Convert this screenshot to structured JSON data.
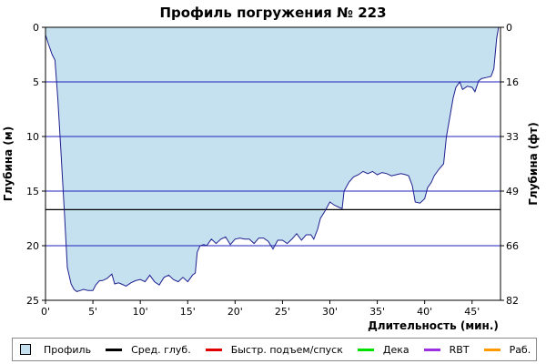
{
  "colors": {
    "fill": "#c5e1f0",
    "profile_stroke": "#1f1f8f",
    "grid": "#2020c0",
    "avg_depth": "#000000",
    "fast_ascent": "#e00000",
    "deco": "#00e000",
    "rbt": "#9b30e0",
    "work": "#ff9900"
  },
  "chart_data": {
    "type": "area",
    "title": "Профиль погружения № 223",
    "xlabel": "Длительность (мин.)",
    "ylabel_left": "Глубина (м)",
    "ylabel_right": "Глубина (фт)",
    "xlim": [
      0,
      48
    ],
    "ylim": [
      25,
      0
    ],
    "x_tick_labels": [
      "0'",
      "5'",
      "10'",
      "15'",
      "20'",
      "25'",
      "30'",
      "35'",
      "40'",
      "45'"
    ],
    "x_tick_values": [
      0,
      5,
      10,
      15,
      20,
      25,
      30,
      35,
      40,
      45
    ],
    "y_left_tick_labels": [
      "0",
      "5",
      "10",
      "15",
      "20",
      "25"
    ],
    "y_left_tick_values": [
      0,
      5,
      10,
      15,
      20,
      25
    ],
    "y_right_tick_labels": [
      "0",
      "16",
      "33",
      "49",
      "66",
      "82"
    ],
    "grid": "horizontal",
    "avg_depth": 16.7,
    "series": [
      {
        "name": "Профиль",
        "x": [
          0,
          0.3,
          0.7,
          1.0,
          1.3,
          1.6,
          2.0,
          2.3,
          2.7,
          3.0,
          3.3,
          3.7,
          4.0,
          4.5,
          5.0,
          5.3,
          5.7,
          6.0,
          6.5,
          7.0,
          7.3,
          7.7,
          8.0,
          8.5,
          9.0,
          9.5,
          10.0,
          10.5,
          11.0,
          11.5,
          12.0,
          12.5,
          13.0,
          13.5,
          14.0,
          14.5,
          15.0,
          15.5,
          15.8,
          16.0,
          16.3,
          16.7,
          17.0,
          17.5,
          18.0,
          18.5,
          19.0,
          19.5,
          20.0,
          20.5,
          21.0,
          21.5,
          22.0,
          22.5,
          23.0,
          23.5,
          24.0,
          24.5,
          25.0,
          25.5,
          26.0,
          26.5,
          27.0,
          27.5,
          28.0,
          28.3,
          28.7,
          29.0,
          29.5,
          30.0,
          30.5,
          31.0,
          31.3,
          31.5,
          32.0,
          32.5,
          33.0,
          33.5,
          34.0,
          34.5,
          35.0,
          35.5,
          36.0,
          36.5,
          37.0,
          37.5,
          38.0,
          38.3,
          38.7,
          39.0,
          39.5,
          40.0,
          40.3,
          40.7,
          41.0,
          41.5,
          42.0,
          42.3,
          42.7,
          43.0,
          43.3,
          43.7,
          44.0,
          44.5,
          45.0,
          45.3,
          45.7,
          46.0,
          46.5,
          47.0,
          47.3,
          47.6,
          47.8
        ],
        "y": [
          0.7,
          1.5,
          2.5,
          3.0,
          6.5,
          11.0,
          17.0,
          22.0,
          23.5,
          24.0,
          24.2,
          24.1,
          24.0,
          24.1,
          24.1,
          23.6,
          23.2,
          23.2,
          23.0,
          22.6,
          23.5,
          23.4,
          23.5,
          23.7,
          23.4,
          23.2,
          23.1,
          23.3,
          22.7,
          23.3,
          23.6,
          22.9,
          22.7,
          23.1,
          23.3,
          22.9,
          23.3,
          22.7,
          22.5,
          20.6,
          20.0,
          19.9,
          20.0,
          19.4,
          19.8,
          19.4,
          19.2,
          19.9,
          19.4,
          19.3,
          19.4,
          19.4,
          19.8,
          19.3,
          19.3,
          19.6,
          20.3,
          19.5,
          19.5,
          19.8,
          19.4,
          18.9,
          19.5,
          19.0,
          19.0,
          19.4,
          18.5,
          17.5,
          16.8,
          16.0,
          16.3,
          16.5,
          16.6,
          15.0,
          14.2,
          13.7,
          13.5,
          13.2,
          13.4,
          13.2,
          13.5,
          13.3,
          13.4,
          13.6,
          13.5,
          13.4,
          13.5,
          13.6,
          14.5,
          16.0,
          16.1,
          15.7,
          14.7,
          14.2,
          13.6,
          13.0,
          12.5,
          10.0,
          8.0,
          6.5,
          5.5,
          5.0,
          5.7,
          5.4,
          5.5,
          5.9,
          4.9,
          4.7,
          4.6,
          4.5,
          3.8,
          1.0,
          0.0
        ]
      }
    ]
  },
  "legend": {
    "items": [
      {
        "label": "Профиль",
        "color": "#c5e1f0",
        "kind": "box"
      },
      {
        "label": "Сред. глуб.",
        "color": "#000000",
        "kind": "line"
      },
      {
        "label": "Быстр. подъем/спуск",
        "color": "#e00000",
        "kind": "line"
      },
      {
        "label": "Дека",
        "color": "#00e000",
        "kind": "line"
      },
      {
        "label": "RBT",
        "color": "#9b30e0",
        "kind": "line"
      },
      {
        "label": "Раб.",
        "color": "#ff9900",
        "kind": "line"
      }
    ]
  }
}
